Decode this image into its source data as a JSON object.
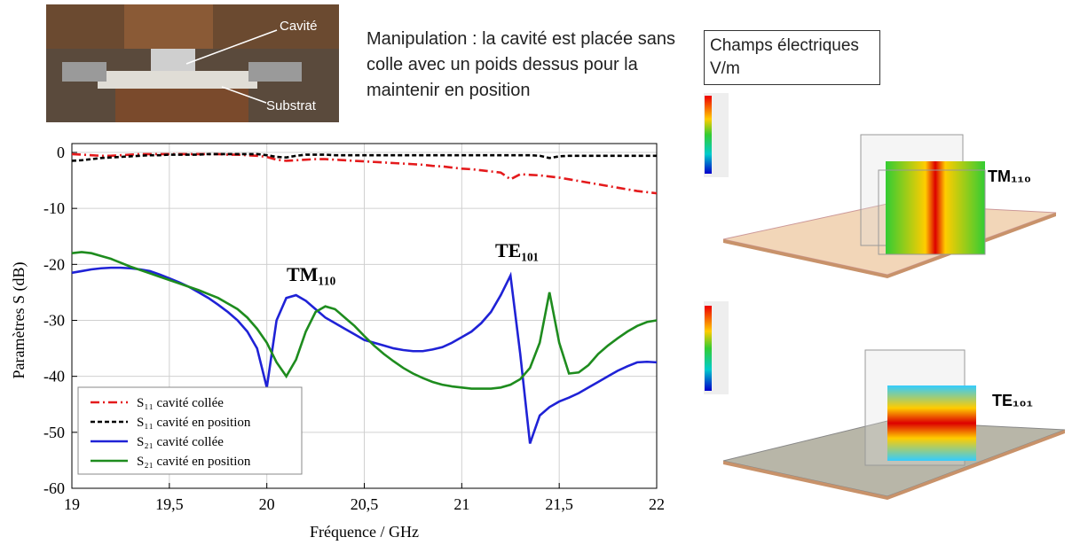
{
  "photo": {
    "labels": [
      "Cavité",
      "Substrat"
    ]
  },
  "caption": "Manipulation : la cavité est placée sans colle avec un poids dessus pour la maintenir en position",
  "field_panel": {
    "title": "Champs électriques V/m",
    "modes": [
      "TM₁₁₀",
      "TE₁₀₁"
    ]
  },
  "chart_data": {
    "type": "line",
    "xlabel": "Fréquence / GHz",
    "ylabel": "Paramètres S (dB)",
    "annotations": [
      "TM₁₁₀",
      "TE₁₀₁"
    ],
    "xlim": [
      19,
      22
    ],
    "ylim": [
      -60,
      0
    ],
    "xticks": [
      19,
      {
        "value": 19.5,
        "label": "19,5"
      },
      20,
      {
        "value": 20.5,
        "label": "20,5"
      },
      21,
      {
        "value": 21.5,
        "label": "21,5"
      },
      22
    ],
    "yticks": [
      0,
      -10,
      -20,
      -30,
      -40,
      -50,
      -60
    ],
    "grid": true,
    "legend": "lower left",
    "x": [
      19,
      19.05,
      19.1,
      19.15,
      19.2,
      19.25,
      19.3,
      19.35,
      19.4,
      19.45,
      19.5,
      19.55,
      19.6,
      19.65,
      19.7,
      19.75,
      19.8,
      19.85,
      19.9,
      19.95,
      20,
      20.05,
      20.1,
      20.15,
      20.2,
      20.25,
      20.3,
      20.35,
      20.4,
      20.45,
      20.5,
      20.55,
      20.6,
      20.65,
      20.7,
      20.75,
      20.8,
      20.85,
      20.9,
      20.95,
      21,
      21.05,
      21.1,
      21.15,
      21.2,
      21.25,
      21.3,
      21.35,
      21.4,
      21.45,
      21.5,
      21.55,
      21.6,
      21.65,
      21.7,
      21.75,
      21.8,
      21.85,
      21.9,
      21.95,
      22
    ],
    "series": [
      {
        "name": "S₁₁ cavité collée",
        "color": "#e41a1c",
        "dash": "dashdot",
        "values": [
          -0.3,
          -0.4,
          -0.5,
          -0.6,
          -0.6,
          -0.5,
          -0.4,
          -0.3,
          -0.3,
          -0.3,
          -0.3,
          -0.3,
          -0.3,
          -0.3,
          -0.3,
          -0.3,
          -0.4,
          -0.4,
          -0.5,
          -0.6,
          -0.8,
          -1.3,
          -1.5,
          -1.4,
          -1.3,
          -1.2,
          -1.2,
          -1.3,
          -1.4,
          -1.5,
          -1.6,
          -1.7,
          -1.8,
          -1.9,
          -2.0,
          -2.1,
          -2.2,
          -2.4,
          -2.5,
          -2.7,
          -2.9,
          -3.0,
          -3.2,
          -3.4,
          -3.6,
          -4.8,
          -3.9,
          -4.0,
          -4.1,
          -4.3,
          -4.5,
          -4.8,
          -5.1,
          -5.4,
          -5.7,
          -6.0,
          -6.3,
          -6.6,
          -6.9,
          -7.1,
          -7.3
        ]
      },
      {
        "name": "S₁₁ cavité en position",
        "color": "#000000",
        "dash": "dash",
        "values": [
          -1.5,
          -1.4,
          -1.2,
          -1.0,
          -0.9,
          -0.8,
          -0.7,
          -0.6,
          -0.5,
          -0.5,
          -0.4,
          -0.4,
          -0.4,
          -0.4,
          -0.3,
          -0.3,
          -0.3,
          -0.3,
          -0.3,
          -0.3,
          -0.5,
          -0.8,
          -0.9,
          -0.6,
          -0.4,
          -0.4,
          -0.4,
          -0.5,
          -0.5,
          -0.5,
          -0.5,
          -0.5,
          -0.5,
          -0.5,
          -0.5,
          -0.5,
          -0.5,
          -0.5,
          -0.5,
          -0.5,
          -0.5,
          -0.5,
          -0.5,
          -0.5,
          -0.5,
          -0.5,
          -0.5,
          -0.5,
          -0.6,
          -1.0,
          -0.7,
          -0.6,
          -0.6,
          -0.6,
          -0.6,
          -0.6,
          -0.6,
          -0.6,
          -0.6,
          -0.6,
          -0.6
        ]
      },
      {
        "name": "S₂₁ cavité collée",
        "color": "#1f22d6",
        "dash": "solid",
        "values": [
          -21.5,
          -21.2,
          -20.9,
          -20.7,
          -20.6,
          -20.6,
          -20.7,
          -20.9,
          -21.2,
          -21.8,
          -22.5,
          -23.2,
          -24,
          -25,
          -26,
          -27.2,
          -28.5,
          -30,
          -32,
          -35,
          -42,
          -30,
          -26,
          -25.5,
          -26.5,
          -28,
          -29.5,
          -30.5,
          -31.5,
          -32.5,
          -33.5,
          -34,
          -34.5,
          -35,
          -35.3,
          -35.5,
          -35.5,
          -35.2,
          -34.8,
          -34,
          -33,
          -32,
          -30.5,
          -28.5,
          -25.5,
          -22,
          -36,
          -52,
          -47,
          -45.5,
          -44.5,
          -43.8,
          -43,
          -42,
          -41,
          -40,
          -39,
          -38.2,
          -37.5,
          -37.4,
          -37.5
        ]
      },
      {
        "name": "S₂₁ cavité en position",
        "color": "#1e8c1e",
        "dash": "solid",
        "values": [
          -18,
          -17.8,
          -18,
          -18.5,
          -19,
          -19.7,
          -20.4,
          -21,
          -21.6,
          -22.2,
          -22.8,
          -23.4,
          -24,
          -24.6,
          -25.3,
          -26,
          -27,
          -28,
          -29.5,
          -31.5,
          -34,
          -37.5,
          -40,
          -37,
          -32,
          -28.5,
          -27.5,
          -28,
          -29.5,
          -31,
          -32.8,
          -34.5,
          -36,
          -37.3,
          -38.5,
          -39.5,
          -40.3,
          -41,
          -41.5,
          -41.8,
          -42,
          -42.2,
          -42.2,
          -42.2,
          -42,
          -41.5,
          -40.5,
          -38.5,
          -34,
          -25,
          -34,
          -39.5,
          -39.3,
          -38,
          -36,
          -34.5,
          -33.2,
          -32,
          -31,
          -30.3,
          -30
        ]
      }
    ]
  }
}
